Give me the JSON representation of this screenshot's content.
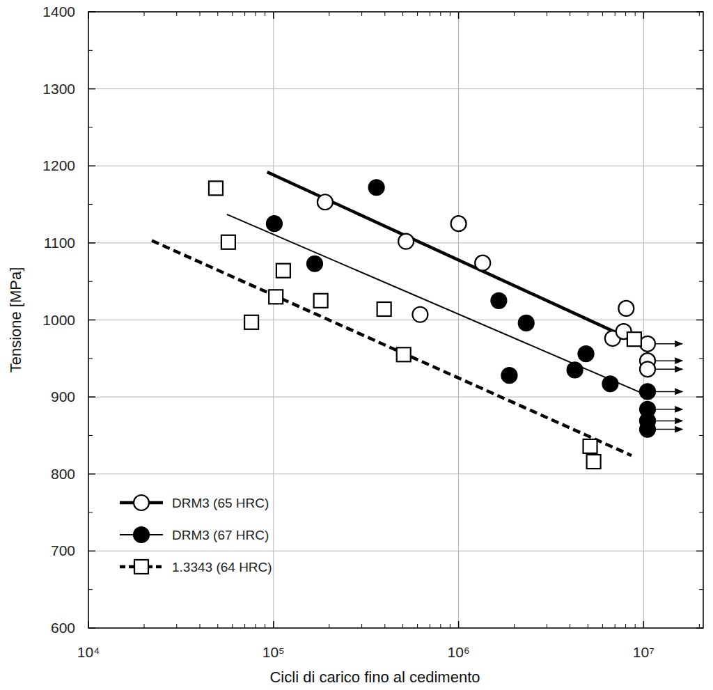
{
  "chart_data": {
    "type": "scatter",
    "x_label": "Cicli di carico fino al cedimento",
    "y_label": "Tensione [MPa]",
    "log": "x",
    "grid": true,
    "legend": "bottom-left",
    "xlim": [
      10000,
      21000000
    ],
    "ylim": [
      600,
      1400
    ],
    "xticks": [
      {
        "value": 10000,
        "label": "10⁴"
      },
      {
        "value": 100000,
        "label": "10⁵"
      },
      {
        "value": 1000000,
        "label": "10⁶"
      },
      {
        "value": 10000000,
        "label": "10⁷"
      }
    ],
    "yticks": [
      600,
      700,
      800,
      900,
      1000,
      1100,
      1200,
      1300,
      1400
    ],
    "series": [
      {
        "name": "DRM3 (65 HRC)",
        "color": "#000000",
        "marker": "circle-open",
        "line_style": "solid-thick",
        "x": [
          190000,
          520000,
          620000,
          1000000,
          1350000,
          6800000,
          7800000,
          8050000,
          10500000,
          10500000,
          10500000
        ],
        "values": [
          1153,
          1102,
          1007,
          1125,
          1074,
          976,
          985,
          1015,
          969,
          947,
          936
        ],
        "fit": {
          "x": [
            92500,
            8000000
          ],
          "values": [
            1192,
            978
          ]
        }
      },
      {
        "name": "DRM3 (67 HRC)",
        "color": "#000000",
        "marker": "circle",
        "line_style": "solid",
        "x": [
          101000,
          167000,
          360000,
          1650000,
          2320000,
          1880000,
          4250000,
          4880000,
          6600000,
          10500000,
          10500000,
          10500000,
          10500000
        ],
        "values": [
          1125,
          1073,
          1172,
          1025,
          996,
          928,
          935,
          956,
          917,
          907,
          884,
          869,
          858
        ],
        "fit": {
          "x": [
            56000,
            10000000
          ],
          "values": [
            1137,
            904
          ]
        }
      },
      {
        "name": "1.3343 (64 HRC)",
        "color": "#000000",
        "marker": "square-open",
        "line_style": "dashed",
        "x": [
          48800,
          57000,
          76000,
          103000,
          113000,
          180000,
          396000,
          505000,
          5140000,
          5370000,
          8900000
        ],
        "values": [
          1171,
          1101,
          997,
          1030,
          1064,
          1025,
          1014,
          955,
          836,
          816,
          975
        ],
        "fit": {
          "x": [
            22000,
            8600000
          ],
          "values": [
            1103,
            824
          ]
        }
      }
    ]
  }
}
